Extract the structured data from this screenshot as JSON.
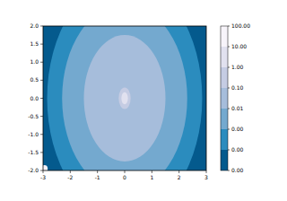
{
  "chart_data": {
    "type": "contour",
    "xlim": [
      -3,
      3
    ],
    "xticks": [
      -3,
      -2,
      -1,
      0,
      1,
      2,
      3
    ],
    "ylim": [
      -2,
      2
    ],
    "yticks": [
      {
        "value": -2,
        "label": "-2.0"
      },
      {
        "value": -1.5,
        "label": "-1.5"
      },
      {
        "value": -1,
        "label": "-1.0"
      },
      {
        "value": -0.5,
        "label": "-0.5"
      },
      {
        "value": 0,
        "label": "0.0"
      },
      {
        "value": 0.5,
        "label": "0.5"
      },
      {
        "value": 1,
        "label": "1.0"
      },
      {
        "value": 1.5,
        "label": "1.5"
      },
      {
        "value": 2,
        "label": "2.0"
      }
    ],
    "colorbar_ticks": [
      {
        "value": 1e-05,
        "label": "0.00"
      },
      {
        "value": 0.0001,
        "label": "0.00"
      },
      {
        "value": 0.001,
        "label": "0.00"
      },
      {
        "value": 0.01,
        "label": "0.01"
      },
      {
        "value": 0.1,
        "label": "0.10"
      },
      {
        "value": 1,
        "label": "1.00"
      },
      {
        "value": 10,
        "label": "10.00"
      },
      {
        "value": 100,
        "label": "100.00"
      }
    ],
    "colors": [
      "#045a8d",
      "#2b8cbe",
      "#74a9cf",
      "#a6bddb",
      "#c5cce3",
      "#e1e1ef",
      "#f7f4fa"
    ],
    "log": true,
    "contours": [
      {
        "level": 0.0001,
        "cx": 0,
        "cy": 0,
        "rx": 2.85,
        "ry": 3.3
      },
      {
        "level": 0.001,
        "cx": 0,
        "cy": 0,
        "rx": 2.3,
        "ry": 2.6
      },
      {
        "level": 0.01,
        "cx": 0,
        "cy": 0,
        "rx": 1.5,
        "ry": 1.75
      },
      {
        "level": 0.1,
        "cx": 0,
        "cy": 0,
        "rx": 0.22,
        "ry": 0.3
      },
      {
        "level": 1,
        "cx": 0,
        "cy": 0,
        "rx": 0.12,
        "ry": 0.17
      },
      {
        "level": 10,
        "cx": -2.95,
        "cy": -1.95,
        "rx": 0.12,
        "ry": 0.1
      }
    ]
  }
}
